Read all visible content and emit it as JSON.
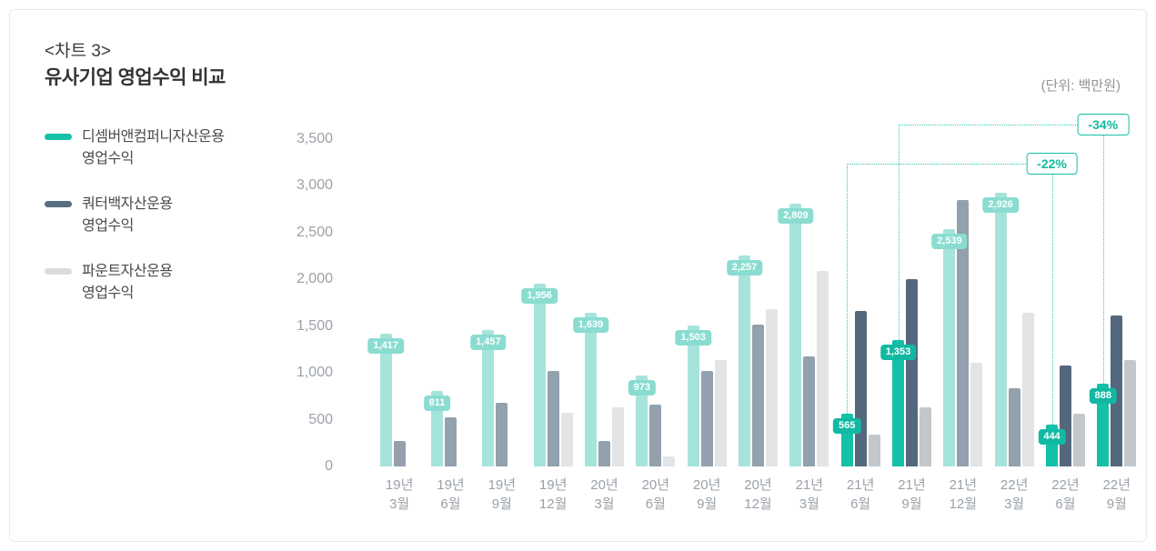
{
  "header": {
    "chart_no": "<차트 3>",
    "title": "유사기업 영업수익 비교",
    "unit": "(단위: 백만원)"
  },
  "legend": [
    {
      "label_line1": "디셈버앤컴퍼니자산운용",
      "label_line2": "영업수익",
      "color": "#14c0a7"
    },
    {
      "label_line1": "쿼터백자산운용",
      "label_line2": "영업수익",
      "color": "#5a6e82"
    },
    {
      "label_line1": "파운트자산운용",
      "label_line2": "영업수익",
      "color": "#d9dcdf"
    }
  ],
  "chart_data": {
    "type": "bar",
    "title": "유사기업 영업수익 비교",
    "unit_label": "(단위: 백만원)",
    "ylim": [
      0,
      3500
    ],
    "yticks": [
      0,
      500,
      1000,
      1500,
      2000,
      2500,
      3000,
      3500
    ],
    "grid": false,
    "legend_position": "left",
    "categories": [
      "19년 3월",
      "19년 6월",
      "19년 9월",
      "19년 12월",
      "20년 3월",
      "20년 6월",
      "20년 9월",
      "20년 12월",
      "21년 3월",
      "21년 6월",
      "21년 9월",
      "21년 12월",
      "22년 3월",
      "22년 6월",
      "22년 9월"
    ],
    "highlighted_indices": [
      9,
      10,
      13,
      14
    ],
    "series": [
      {
        "key": "december",
        "name": "디셈버앤컴퍼니자산운용 영업수익",
        "color": "#14c0a7",
        "color_muted": "#a6e4db",
        "values": [
          1417,
          811,
          1457,
          1956,
          1639,
          973,
          1503,
          2257,
          2809,
          565,
          1353,
          2539,
          2926,
          444,
          888
        ],
        "value_labels": [
          "1,417",
          "811",
          "1,457",
          "1,956",
          "1,639",
          "973",
          "1,503",
          "2,257",
          "2,809",
          "565",
          "1,353",
          "2,539",
          "2,926",
          "444",
          "888"
        ]
      },
      {
        "key": "quarterback",
        "name": "쿼터백자산운용 영업수익",
        "color": "#53687d",
        "color_muted": "#93a0ad",
        "values": [
          270,
          530,
          680,
          1020,
          270,
          660,
          1020,
          1520,
          1180,
          1660,
          2000,
          2845,
          840,
          1080,
          1610
        ]
      },
      {
        "key": "fount",
        "name": "파운트자산운용 영업수익",
        "color": "#c2c7cc",
        "color_muted": "#e2e4e6",
        "values": [
          0,
          0,
          0,
          570,
          630,
          110,
          1140,
          1680,
          2090,
          340,
          630,
          1110,
          1640,
          560,
          1140
        ]
      }
    ],
    "annotations": [
      {
        "label": "-22%",
        "from_index": 9,
        "to_index": 13,
        "level": 3240
      },
      {
        "label": "-34%",
        "from_index": 10,
        "to_index": 14,
        "level": 3655
      }
    ]
  }
}
